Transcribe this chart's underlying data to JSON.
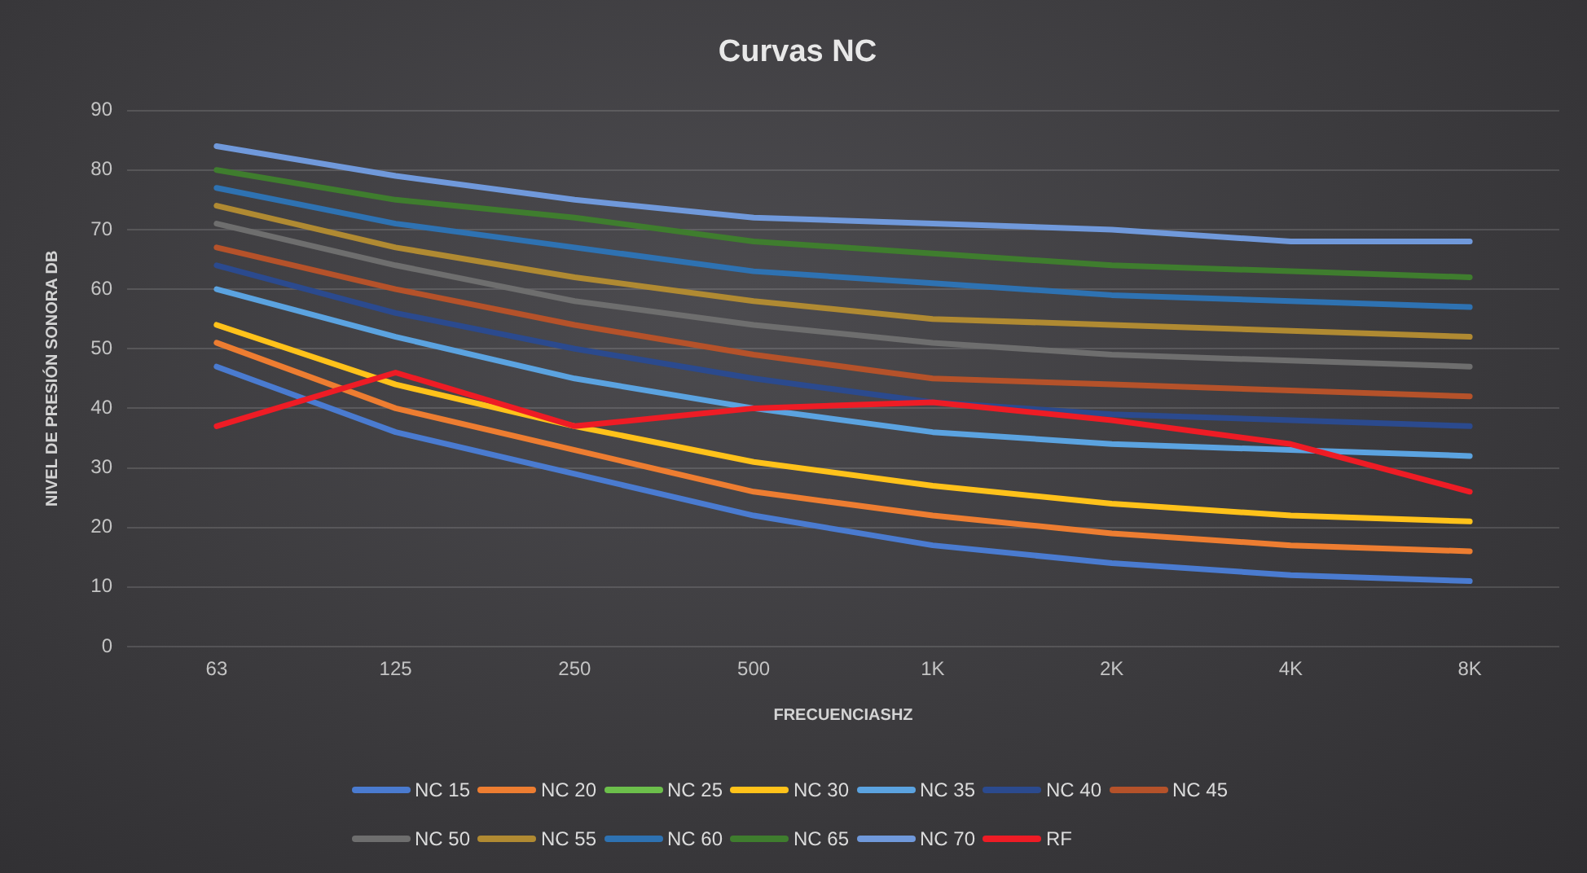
{
  "chart_data": {
    "type": "line",
    "title": "Curvas NC",
    "xlabel": "FRECUENCIASHZ",
    "ylabel": "NIVEL DE PRESIÓN SONORA DB",
    "categories": [
      "63",
      "125",
      "250",
      "500",
      "1K",
      "2K",
      "4K",
      "8K"
    ],
    "series": [
      {
        "name": "NC 15",
        "color": "#4a7bd0",
        "values": [
          47,
          36,
          29,
          22,
          17,
          14,
          12,
          11
        ]
      },
      {
        "name": "NC 20",
        "color": "#ed7d31",
        "values": [
          51,
          40,
          33,
          26,
          22,
          19,
          17,
          16
        ]
      },
      {
        "name": "NC 25",
        "color": "#6cbf4b",
        "values": [
          null,
          null,
          null,
          null,
          null,
          null,
          null,
          null
        ]
      },
      {
        "name": "NC 30",
        "color": "#ffc21a",
        "values": [
          54,
          44,
          37,
          31,
          27,
          24,
          22,
          21
        ]
      },
      {
        "name": "NC 35",
        "color": "#5ba3e0",
        "values": [
          60,
          52,
          45,
          40,
          36,
          34,
          33,
          32
        ]
      },
      {
        "name": "NC 40",
        "color": "#2b4a8e",
        "values": [
          64,
          56,
          50,
          45,
          41,
          39,
          38,
          37
        ]
      },
      {
        "name": "NC 45",
        "color": "#b5522a",
        "values": [
          67,
          60,
          54,
          49,
          45,
          44,
          43,
          42
        ]
      },
      {
        "name": "NC 50",
        "color": "#6e6e6e",
        "values": [
          71,
          64,
          58,
          54,
          51,
          49,
          48,
          47
        ]
      },
      {
        "name": "NC 55",
        "color": "#b08a32",
        "values": [
          74,
          67,
          62,
          58,
          55,
          54,
          53,
          52
        ]
      },
      {
        "name": "NC 60",
        "color": "#2e72b2",
        "values": [
          77,
          71,
          67,
          63,
          61,
          59,
          58,
          57
        ]
      },
      {
        "name": "NC 65",
        "color": "#3f7d2e",
        "values": [
          80,
          75,
          72,
          68,
          66,
          64,
          63,
          62
        ]
      },
      {
        "name": "NC 70",
        "color": "#7099db",
        "values": [
          84,
          79,
          75,
          72,
          71,
          70,
          68,
          68
        ]
      },
      {
        "name": "RF",
        "color": "#ee1c25",
        "values": [
          37,
          46,
          37,
          40,
          41,
          38,
          34,
          26
        ]
      }
    ],
    "ylim": [
      0,
      90
    ],
    "yticks": [
      0,
      10,
      20,
      30,
      40,
      50,
      60,
      70,
      80,
      90
    ],
    "grid": "y",
    "legend": "bottom"
  }
}
